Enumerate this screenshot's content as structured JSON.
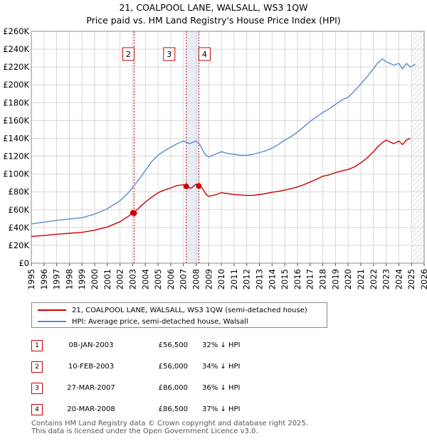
{
  "title_line1": "21, COALPOOL LANE, WALSALL, WS3 1QW",
  "title_line2": "Price paid vs. HM Land Registry's House Price Index (HPI)",
  "colors": {
    "red": "#cc0000",
    "blue": "#5b8bc9",
    "band": "#dce6f2"
  },
  "chart_data": {
    "type": "line",
    "title": "21, COALPOOL LANE, WALSALL, WS3 1QW — Price paid vs. HM Land Registry's House Price Index (HPI)",
    "xlim": [
      1995,
      2026
    ],
    "ylim": [
      0,
      260000
    ],
    "x_ticks": [
      "1995",
      "1996",
      "1997",
      "1998",
      "1999",
      "2000",
      "2001",
      "2002",
      "2003",
      "2004",
      "2005",
      "2006",
      "2007",
      "2008",
      "2009",
      "2010",
      "2011",
      "2012",
      "2013",
      "2014",
      "2015",
      "2016",
      "2017",
      "2018",
      "2019",
      "2020",
      "2021",
      "2022",
      "2023",
      "2024",
      "2025",
      "2026"
    ],
    "y_ticks": [
      {
        "value": 0,
        "label": "£0"
      },
      {
        "value": 20000,
        "label": "£20K"
      },
      {
        "value": 40000,
        "label": "£40K"
      },
      {
        "value": 60000,
        "label": "£60K"
      },
      {
        "value": 80000,
        "label": "£80K"
      },
      {
        "value": 100000,
        "label": "£100K"
      },
      {
        "value": 120000,
        "label": "£120K"
      },
      {
        "value": 140000,
        "label": "£140K"
      },
      {
        "value": 160000,
        "label": "£160K"
      },
      {
        "value": 180000,
        "label": "£180K"
      },
      {
        "value": 200000,
        "label": "£200K"
      },
      {
        "value": 220000,
        "label": "£220K"
      },
      {
        "value": 240000,
        "label": "£240K"
      },
      {
        "value": 260000,
        "label": "£260K"
      }
    ],
    "shaded_band": [
      2007.23,
      2008.22
    ],
    "forecast_start": 2025.0,
    "series": [
      {
        "name": "21, COALPOOL LANE, WALSALL, WS3 1QW (semi-detached house)",
        "color": "#cc0000",
        "x": [
          1995.0,
          1996.0,
          1997.0,
          1998.0,
          1999.0,
          2000.0,
          2001.0,
          2002.0,
          2002.6,
          2003.03,
          2003.5,
          2004.0,
          2004.5,
          2005.0,
          2005.5,
          2006.0,
          2006.5,
          2007.0,
          2007.23,
          2007.6,
          2008.0,
          2008.22,
          2008.5,
          2008.8,
          2009.0,
          2009.5,
          2010.0,
          2010.5,
          2011.0,
          2011.5,
          2012.0,
          2012.5,
          2013.0,
          2013.5,
          2014.0,
          2014.5,
          2015.0,
          2015.5,
          2016.0,
          2016.5,
          2017.0,
          2017.5,
          2018.0,
          2018.5,
          2019.0,
          2019.5,
          2020.0,
          2020.5,
          2021.0,
          2021.5,
          2022.0,
          2022.3,
          2022.7,
          2023.0,
          2023.3,
          2023.6,
          2024.0,
          2024.3,
          2024.6,
          2024.9
        ],
        "y": [
          30000,
          31000,
          32500,
          33500,
          34500,
          37000,
          40500,
          46500,
          52000,
          56500,
          62000,
          68500,
          74000,
          79000,
          82000,
          84500,
          87000,
          88000,
          86000,
          84000,
          88500,
          86500,
          84000,
          77000,
          75000,
          76500,
          79000,
          78000,
          77000,
          76500,
          76000,
          76000,
          77000,
          78000,
          79500,
          80500,
          82000,
          83500,
          85500,
          88000,
          91000,
          94000,
          97500,
          99000,
          101500,
          103500,
          105000,
          108000,
          112500,
          118000,
          125000,
          130000,
          135000,
          138000,
          136000,
          134000,
          137000,
          133000,
          138000,
          140000
        ]
      },
      {
        "name": "HPI: Average price, semi-detached house, Walsall",
        "color": "#5b8bc9",
        "x": [
          1995.0,
          1996.0,
          1997.0,
          1998.0,
          1999.0,
          2000.0,
          2001.0,
          2002.0,
          2002.6,
          2003.0,
          2003.5,
          2004.0,
          2004.5,
          2005.0,
          2005.5,
          2006.0,
          2006.5,
          2007.0,
          2007.5,
          2008.0,
          2008.3,
          2008.7,
          2009.0,
          2009.5,
          2010.0,
          2010.5,
          2011.0,
          2011.5,
          2012.0,
          2012.5,
          2013.0,
          2013.5,
          2014.0,
          2014.5,
          2015.0,
          2015.5,
          2016.0,
          2016.5,
          2017.0,
          2017.5,
          2018.0,
          2018.5,
          2019.0,
          2019.5,
          2020.0,
          2020.5,
          2021.0,
          2021.5,
          2022.0,
          2022.3,
          2022.7,
          2023.0,
          2023.3,
          2023.6,
          2024.0,
          2024.3,
          2024.6,
          2024.9,
          2025.3
        ],
        "y": [
          44000,
          46000,
          48000,
          49500,
          51000,
          55000,
          61000,
          70000,
          78000,
          85000,
          94000,
          104000,
          114000,
          121000,
          126000,
          130000,
          134000,
          137000,
          134000,
          137000,
          133000,
          122000,
          119000,
          122000,
          125000,
          123000,
          122000,
          121000,
          121000,
          122000,
          124000,
          126000,
          129000,
          133000,
          138000,
          142000,
          147000,
          153000,
          159000,
          164000,
          169000,
          173000,
          178000,
          183000,
          186000,
          193000,
          201000,
          209000,
          218000,
          224000,
          229000,
          226000,
          224000,
          222000,
          224000,
          218000,
          224000,
          220000,
          223000
        ]
      }
    ],
    "transactions": [
      {
        "num": "1",
        "date": "08-JAN-2003",
        "price": "£56,500",
        "hpi": "32% ↓ HPI",
        "x": 2003.02,
        "y": 56500
      },
      {
        "num": "2",
        "date": "10-FEB-2003",
        "price": "£56,000",
        "hpi": "34% ↓ HPI",
        "x": 2003.11,
        "y": 56000
      },
      {
        "num": "3",
        "date": "27-MAR-2007",
        "price": "£86,000",
        "hpi": "36% ↓ HPI",
        "x": 2007.23,
        "y": 86000
      },
      {
        "num": "4",
        "date": "20-MAR-2008",
        "price": "£86,500",
        "hpi": "37% ↓ HPI",
        "x": 2008.22,
        "y": 86500
      }
    ],
    "chart_markers": [
      "2",
      "3",
      "4"
    ],
    "legend": [
      "21, COALPOOL LANE, WALSALL, WS3 1QW (semi-detached house)",
      "HPI: Average price, semi-detached house, Walsall"
    ]
  },
  "footer_line1": "Contains HM Land Registry data © Crown copyright and database right 2025.",
  "footer_line2": "This data is licensed under the Open Government Licence v3.0."
}
